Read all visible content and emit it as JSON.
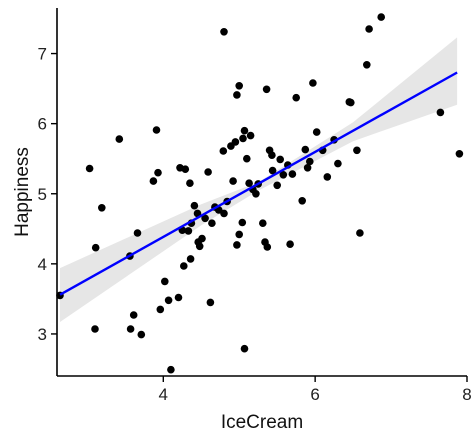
{
  "chart_data": {
    "type": "scatter",
    "title": "",
    "xlabel": "IceCream",
    "ylabel": "Happiness",
    "xlim": [
      2.6,
      8.0
    ],
    "ylim": [
      2.4,
      7.65
    ],
    "x_ticks": [
      4,
      6,
      8
    ],
    "y_ticks": [
      3,
      4,
      5,
      6,
      7
    ],
    "x_tick_labels": [
      "4",
      "6",
      "8"
    ],
    "y_tick_labels": [
      "3",
      "4",
      "5",
      "6",
      "7"
    ],
    "grid": false,
    "legend": "none",
    "point_color": "#000000",
    "trend_line": {
      "method": "linear regression with confidence band",
      "color": "#0000ff",
      "band_color": "#e6e6e6",
      "start": [
        2.64,
        3.56
      ],
      "end": [
        7.87,
        6.73
      ],
      "band_lower": [
        [
          2.64,
          3.17
        ],
        [
          4.5,
          4.55
        ],
        [
          5.26,
          5.05
        ],
        [
          6.5,
          5.75
        ],
        [
          7.87,
          6.27
        ]
      ],
      "band_upper": [
        [
          2.64,
          3.94
        ],
        [
          4.5,
          4.85
        ],
        [
          5.26,
          5.17
        ],
        [
          6.5,
          6.02
        ],
        [
          7.87,
          7.23
        ]
      ]
    },
    "points": [
      {
        "x": 2.64,
        "y": 3.55
      },
      {
        "x": 3.03,
        "y": 5.36
      },
      {
        "x": 3.11,
        "y": 4.23
      },
      {
        "x": 3.19,
        "y": 4.8
      },
      {
        "x": 3.1,
        "y": 3.07
      },
      {
        "x": 3.42,
        "y": 5.78
      },
      {
        "x": 3.57,
        "y": 3.07
      },
      {
        "x": 3.61,
        "y": 3.27
      },
      {
        "x": 3.66,
        "y": 4.44
      },
      {
        "x": 3.71,
        "y": 2.99
      },
      {
        "x": 3.56,
        "y": 4.11
      },
      {
        "x": 3.87,
        "y": 5.18
      },
      {
        "x": 3.93,
        "y": 5.3
      },
      {
        "x": 3.91,
        "y": 5.91
      },
      {
        "x": 3.96,
        "y": 3.35
      },
      {
        "x": 4.02,
        "y": 3.75
      },
      {
        "x": 4.07,
        "y": 3.48
      },
      {
        "x": 4.1,
        "y": 2.49
      },
      {
        "x": 4.2,
        "y": 3.52
      },
      {
        "x": 4.27,
        "y": 3.97
      },
      {
        "x": 4.22,
        "y": 5.37
      },
      {
        "x": 4.29,
        "y": 5.35
      },
      {
        "x": 4.25,
        "y": 4.48
      },
      {
        "x": 4.33,
        "y": 4.47
      },
      {
        "x": 4.37,
        "y": 4.58
      },
      {
        "x": 4.35,
        "y": 5.15
      },
      {
        "x": 4.36,
        "y": 4.07
      },
      {
        "x": 4.41,
        "y": 4.83
      },
      {
        "x": 4.45,
        "y": 4.72
      },
      {
        "x": 4.46,
        "y": 4.31
      },
      {
        "x": 4.48,
        "y": 4.25
      },
      {
        "x": 4.51,
        "y": 4.36
      },
      {
        "x": 4.55,
        "y": 4.65
      },
      {
        "x": 4.59,
        "y": 5.31
      },
      {
        "x": 4.62,
        "y": 3.45
      },
      {
        "x": 4.64,
        "y": 4.58
      },
      {
        "x": 4.68,
        "y": 4.81
      },
      {
        "x": 4.73,
        "y": 4.77
      },
      {
        "x": 4.79,
        "y": 5.61
      },
      {
        "x": 4.8,
        "y": 4.72
      },
      {
        "x": 4.8,
        "y": 7.31
      },
      {
        "x": 4.84,
        "y": 4.89
      },
      {
        "x": 4.89,
        "y": 5.68
      },
      {
        "x": 4.92,
        "y": 5.18
      },
      {
        "x": 4.97,
        "y": 4.27
      },
      {
        "x": 4.97,
        "y": 6.41
      },
      {
        "x": 5.0,
        "y": 6.54
      },
      {
        "x": 4.95,
        "y": 5.74
      },
      {
        "x": 5.0,
        "y": 4.42
      },
      {
        "x": 5.04,
        "y": 4.59
      },
      {
        "x": 5.05,
        "y": 5.79
      },
      {
        "x": 5.07,
        "y": 5.9
      },
      {
        "x": 5.07,
        "y": 2.79
      },
      {
        "x": 5.1,
        "y": 5.5
      },
      {
        "x": 5.13,
        "y": 5.15
      },
      {
        "x": 5.15,
        "y": 5.83
      },
      {
        "x": 5.18,
        "y": 5.06
      },
      {
        "x": 5.22,
        "y": 5.0
      },
      {
        "x": 5.25,
        "y": 5.14
      },
      {
        "x": 5.31,
        "y": 4.58
      },
      {
        "x": 5.36,
        "y": 6.49
      },
      {
        "x": 5.4,
        "y": 5.62
      },
      {
        "x": 5.43,
        "y": 5.55
      },
      {
        "x": 5.34,
        "y": 4.31
      },
      {
        "x": 5.37,
        "y": 4.24
      },
      {
        "x": 5.44,
        "y": 5.33
      },
      {
        "x": 5.5,
        "y": 5.12
      },
      {
        "x": 5.54,
        "y": 5.49
      },
      {
        "x": 5.58,
        "y": 5.27
      },
      {
        "x": 5.64,
        "y": 5.41
      },
      {
        "x": 5.7,
        "y": 5.28
      },
      {
        "x": 5.67,
        "y": 4.28
      },
      {
        "x": 5.75,
        "y": 6.37
      },
      {
        "x": 5.83,
        "y": 4.9
      },
      {
        "x": 5.87,
        "y": 5.63
      },
      {
        "x": 5.93,
        "y": 5.46
      },
      {
        "x": 5.9,
        "y": 5.37
      },
      {
        "x": 5.97,
        "y": 6.58
      },
      {
        "x": 6.02,
        "y": 5.88
      },
      {
        "x": 6.1,
        "y": 5.62
      },
      {
        "x": 6.16,
        "y": 5.24
      },
      {
        "x": 6.25,
        "y": 5.77
      },
      {
        "x": 6.3,
        "y": 5.43
      },
      {
        "x": 6.45,
        "y": 6.31
      },
      {
        "x": 6.47,
        "y": 6.3
      },
      {
        "x": 6.55,
        "y": 5.62
      },
      {
        "x": 6.59,
        "y": 4.44
      },
      {
        "x": 6.68,
        "y": 6.84
      },
      {
        "x": 6.71,
        "y": 7.35
      },
      {
        "x": 6.87,
        "y": 7.52
      },
      {
        "x": 7.65,
        "y": 6.16
      },
      {
        "x": 7.9,
        "y": 5.57
      }
    ]
  }
}
